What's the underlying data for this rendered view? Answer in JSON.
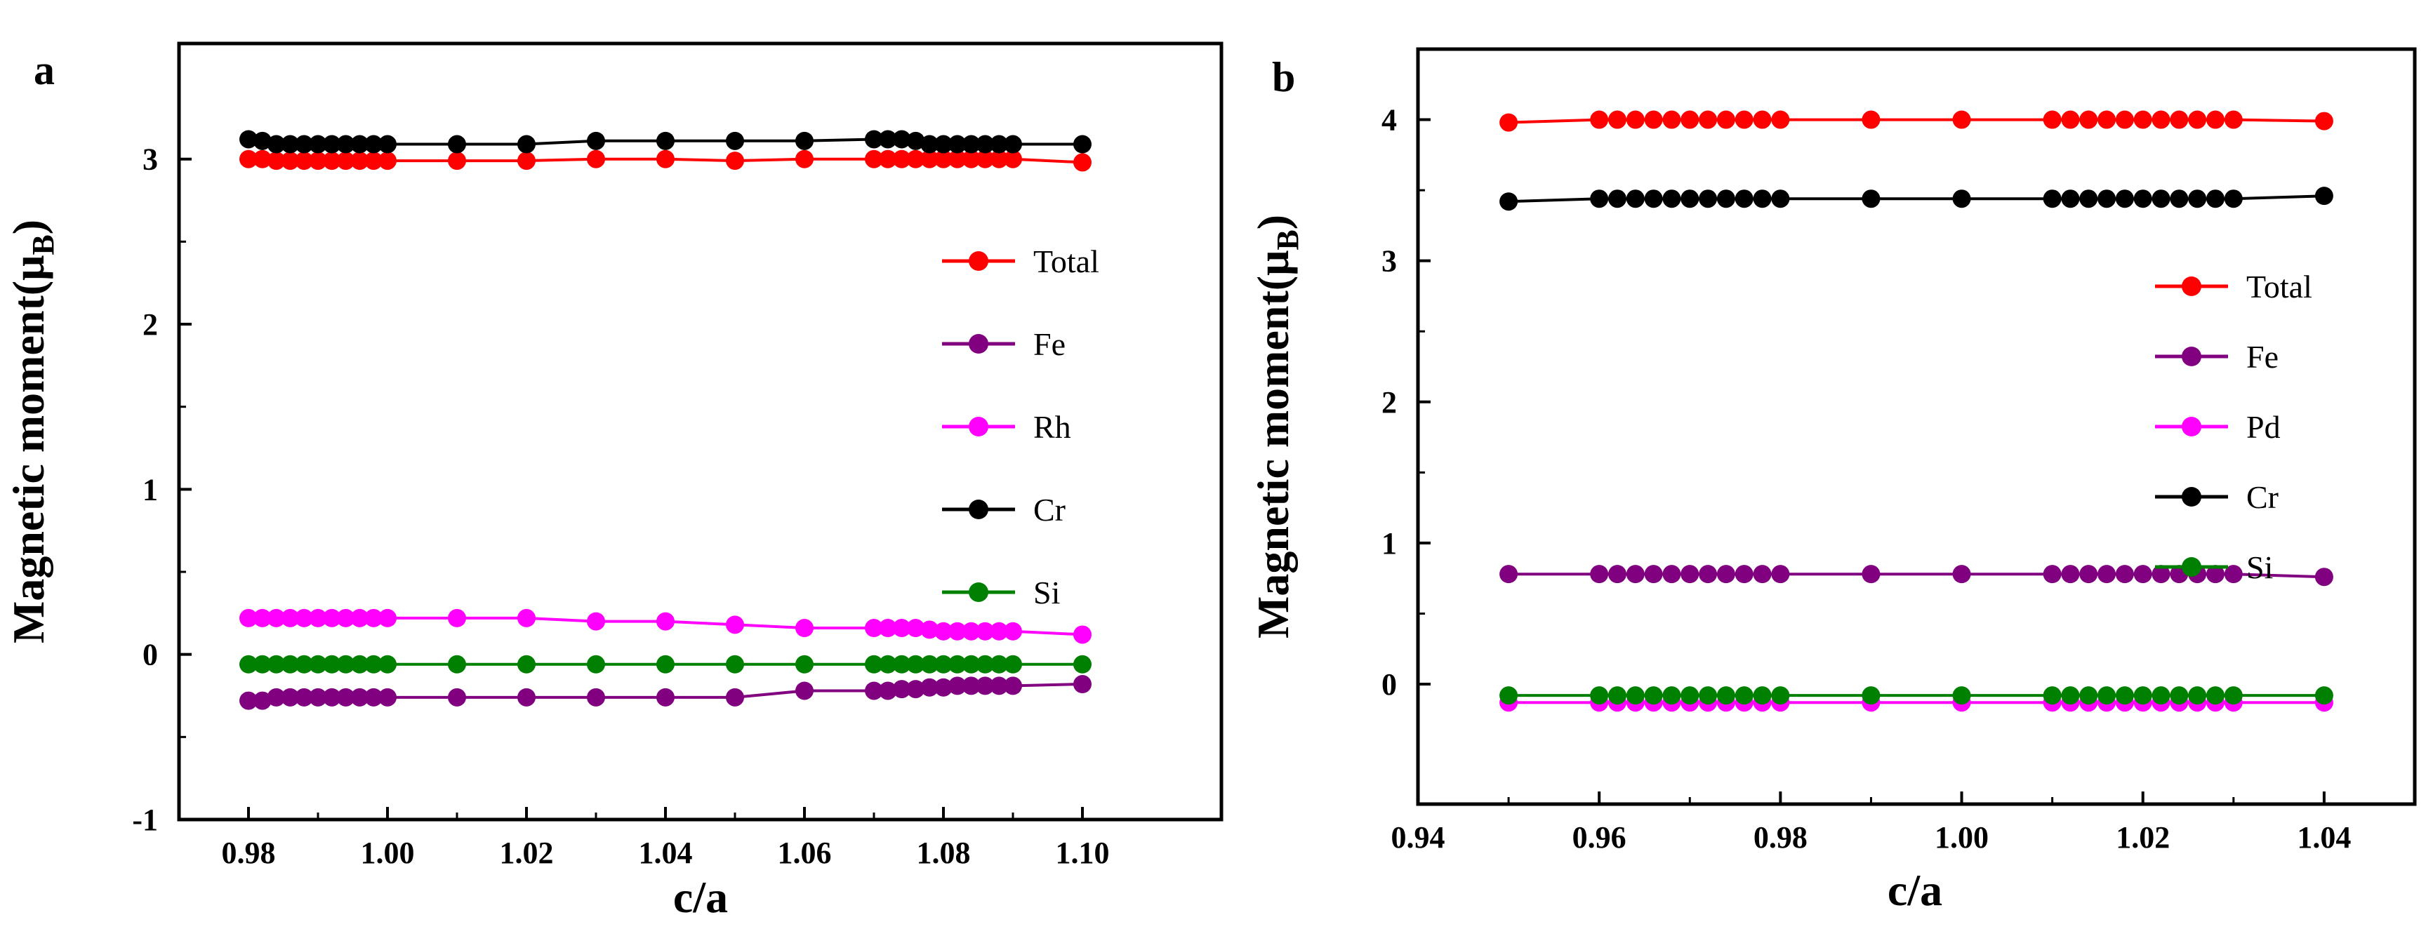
{
  "chart_data": [
    {
      "type": "line",
      "panel_label": "a",
      "xlabel": "c/a",
      "ylabel_main": "Magnetic moment(μ",
      "ylabel_sub": "B",
      "ylabel_close": ")",
      "xlim": [
        0.97,
        1.12
      ],
      "ylim": [
        -1,
        3.7
      ],
      "xticks": [
        0.98,
        1.0,
        1.02,
        1.04,
        1.06,
        1.08,
        1.1
      ],
      "xtick_labels": [
        "0.98",
        "1.00",
        "1.02",
        "1.04",
        "1.06",
        "1.08",
        "1.10"
      ],
      "yticks": [
        -1,
        0,
        1,
        2,
        3
      ],
      "ytick_labels": [
        "-1",
        "0",
        "1",
        "2",
        "3"
      ],
      "x": [
        0.98,
        0.982,
        0.984,
        0.986,
        0.988,
        0.99,
        0.992,
        0.994,
        0.996,
        0.998,
        1.0,
        1.01,
        1.02,
        1.03,
        1.04,
        1.05,
        1.06,
        1.07,
        1.072,
        1.074,
        1.076,
        1.078,
        1.08,
        1.082,
        1.084,
        1.086,
        1.088,
        1.09,
        1.1
      ],
      "legend_position": "center-right",
      "series": [
        {
          "name": "Total",
          "color": "#ff0000",
          "values": [
            3.0,
            3.0,
            2.99,
            2.99,
            2.99,
            2.99,
            2.99,
            2.99,
            2.99,
            2.99,
            2.99,
            2.99,
            2.99,
            3.0,
            3.0,
            2.99,
            3.0,
            3.0,
            3.0,
            3.0,
            3.0,
            3.0,
            3.0,
            3.0,
            3.0,
            3.0,
            3.0,
            3.0,
            2.98
          ]
        },
        {
          "name": "Fe",
          "color": "#800080",
          "values": [
            -0.28,
            -0.28,
            -0.26,
            -0.26,
            -0.26,
            -0.26,
            -0.26,
            -0.26,
            -0.26,
            -0.26,
            -0.26,
            -0.26,
            -0.26,
            -0.26,
            -0.26,
            -0.26,
            -0.22,
            -0.22,
            -0.22,
            -0.21,
            -0.21,
            -0.2,
            -0.2,
            -0.19,
            -0.19,
            -0.19,
            -0.19,
            -0.19,
            -0.18
          ]
        },
        {
          "name": "Rh",
          "color": "#ff00ff",
          "values": [
            0.22,
            0.22,
            0.22,
            0.22,
            0.22,
            0.22,
            0.22,
            0.22,
            0.22,
            0.22,
            0.22,
            0.22,
            0.22,
            0.2,
            0.2,
            0.18,
            0.16,
            0.16,
            0.16,
            0.16,
            0.16,
            0.15,
            0.14,
            0.14,
            0.14,
            0.14,
            0.14,
            0.14,
            0.12
          ]
        },
        {
          "name": "Cr",
          "color": "#000000",
          "values": [
            3.12,
            3.11,
            3.09,
            3.09,
            3.09,
            3.09,
            3.09,
            3.09,
            3.09,
            3.09,
            3.09,
            3.09,
            3.09,
            3.11,
            3.11,
            3.11,
            3.11,
            3.12,
            3.12,
            3.12,
            3.11,
            3.09,
            3.09,
            3.09,
            3.09,
            3.09,
            3.09,
            3.09,
            3.09
          ]
        },
        {
          "name": "Si",
          "color": "#008000",
          "values": [
            -0.06,
            -0.06,
            -0.06,
            -0.06,
            -0.06,
            -0.06,
            -0.06,
            -0.06,
            -0.06,
            -0.06,
            -0.06,
            -0.06,
            -0.06,
            -0.06,
            -0.06,
            -0.06,
            -0.06,
            -0.06,
            -0.06,
            -0.06,
            -0.06,
            -0.06,
            -0.06,
            -0.06,
            -0.06,
            -0.06,
            -0.06,
            -0.06,
            -0.06
          ]
        }
      ]
    },
    {
      "type": "line",
      "panel_label": "b",
      "xlabel": "c/a",
      "ylabel_main": "Magnetic moment(μ",
      "ylabel_sub": "B",
      "ylabel_close": ")",
      "xlim": [
        0.94,
        1.05
      ],
      "ylim": [
        -0.85,
        4.5
      ],
      "xticks": [
        0.94,
        0.96,
        0.98,
        1.0,
        1.02,
        1.04
      ],
      "xtick_labels": [
        "0.94",
        "0.96",
        "0.98",
        "1.00",
        "1.02",
        "1.04"
      ],
      "yticks": [
        0,
        1,
        2,
        3,
        4
      ],
      "ytick_labels": [
        "0",
        "1",
        "2",
        "3",
        "4"
      ],
      "x": [
        0.95,
        0.96,
        0.962,
        0.964,
        0.966,
        0.968,
        0.97,
        0.972,
        0.974,
        0.976,
        0.978,
        0.98,
        0.99,
        1.0,
        1.01,
        1.012,
        1.014,
        1.016,
        1.018,
        1.02,
        1.022,
        1.024,
        1.026,
        1.028,
        1.03,
        1.04
      ],
      "legend_position": "center-right",
      "series": [
        {
          "name": "Total",
          "color": "#ff0000",
          "values": [
            3.98,
            4.0,
            4.0,
            4.0,
            4.0,
            4.0,
            4.0,
            4.0,
            4.0,
            4.0,
            4.0,
            4.0,
            4.0,
            4.0,
            4.0,
            4.0,
            4.0,
            4.0,
            4.0,
            4.0,
            4.0,
            4.0,
            4.0,
            4.0,
            4.0,
            3.99
          ]
        },
        {
          "name": "Fe",
          "color": "#800080",
          "values": [
            0.78,
            0.78,
            0.78,
            0.78,
            0.78,
            0.78,
            0.78,
            0.78,
            0.78,
            0.78,
            0.78,
            0.78,
            0.78,
            0.78,
            0.78,
            0.78,
            0.78,
            0.78,
            0.78,
            0.78,
            0.78,
            0.78,
            0.78,
            0.78,
            0.78,
            0.76
          ]
        },
        {
          "name": "Pd",
          "color": "#ff00ff",
          "values": [
            -0.13,
            -0.13,
            -0.13,
            -0.13,
            -0.13,
            -0.13,
            -0.13,
            -0.13,
            -0.13,
            -0.13,
            -0.13,
            -0.13,
            -0.13,
            -0.13,
            -0.13,
            -0.13,
            -0.13,
            -0.13,
            -0.13,
            -0.13,
            -0.13,
            -0.13,
            -0.13,
            -0.13,
            -0.13,
            -0.13
          ]
        },
        {
          "name": "Cr",
          "color": "#000000",
          "values": [
            3.42,
            3.44,
            3.44,
            3.44,
            3.44,
            3.44,
            3.44,
            3.44,
            3.44,
            3.44,
            3.44,
            3.44,
            3.44,
            3.44,
            3.44,
            3.44,
            3.44,
            3.44,
            3.44,
            3.44,
            3.44,
            3.44,
            3.44,
            3.44,
            3.44,
            3.46
          ]
        },
        {
          "name": "Si",
          "color": "#008000",
          "values": [
            -0.08,
            -0.08,
            -0.08,
            -0.08,
            -0.08,
            -0.08,
            -0.08,
            -0.08,
            -0.08,
            -0.08,
            -0.08,
            -0.08,
            -0.08,
            -0.08,
            -0.08,
            -0.08,
            -0.08,
            -0.08,
            -0.08,
            -0.08,
            -0.08,
            -0.08,
            -0.08,
            -0.08,
            -0.08,
            -0.08
          ]
        }
      ]
    }
  ]
}
